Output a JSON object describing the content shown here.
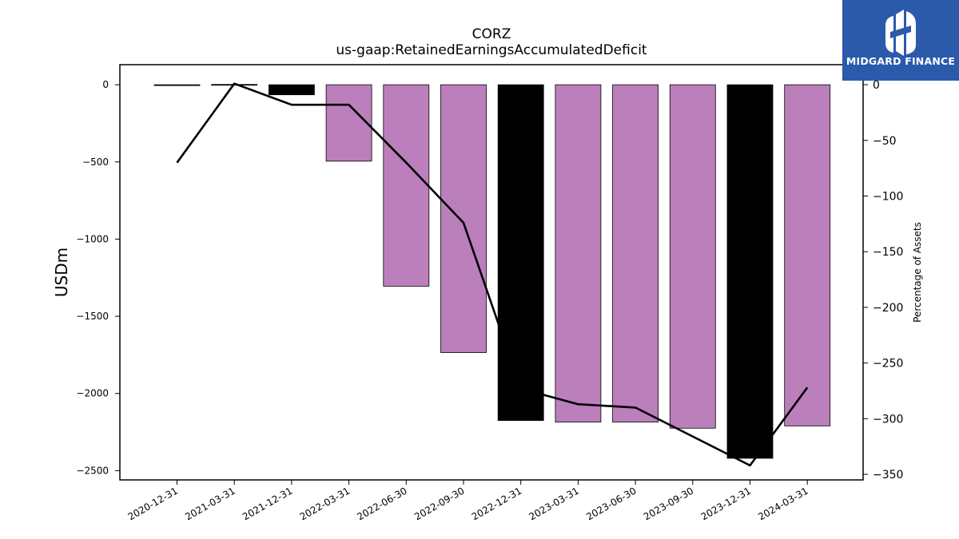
{
  "brand": {
    "name": "MIDGARD FINANCE",
    "bg_color": "#2b5aab"
  },
  "chart_data": {
    "type": "bar",
    "title": "CORZ",
    "subtitle": "us-gaap:RetainedEarningsAccumulatedDeficit",
    "ylabel": "USDm",
    "ylabel_right": "Percentage of Assets",
    "categories": [
      "2020-12-31",
      "2021-03-31",
      "2021-12-31",
      "2022-03-31",
      "2022-06-30",
      "2022-09-30",
      "2022-12-31",
      "2023-03-31",
      "2023-06-30",
      "2023-09-30",
      "2023-12-31",
      "2024-03-31"
    ],
    "series": [
      {
        "type": "bar",
        "axis": "left",
        "values": [
          -2,
          2,
          -65,
          -495,
          -1305,
          -1735,
          -2175,
          -2185,
          -2185,
          -2225,
          -2420,
          -2210
        ],
        "colors": [
          "#000000",
          "#000000",
          "#000000",
          "#bb7fbb",
          "#bb7fbb",
          "#bb7fbb",
          "#000000",
          "#bb7fbb",
          "#bb7fbb",
          "#bb7fbb",
          "#000000",
          "#bb7fbb"
        ]
      },
      {
        "type": "line",
        "axis": "right",
        "color": "#000000",
        "values": [
          -70,
          1,
          -18,
          -18,
          -70,
          -124,
          -273,
          -287,
          -290,
          -316,
          -342,
          -272
        ]
      }
    ],
    "ylim": [
      -2560,
      130
    ],
    "yticks": [
      0,
      -500,
      -1000,
      -1500,
      -2000,
      -2500
    ],
    "ytick_labels": [
      "0",
      "−500",
      "−1000",
      "−1500",
      "−2000",
      "−2500"
    ],
    "ylim_right": [
      -355,
      18
    ],
    "yticks_right": [
      0,
      -50,
      -100,
      -150,
      -200,
      -250,
      -300,
      -350
    ],
    "ytick_labels_right": [
      "0",
      "−50",
      "−100",
      "−150",
      "−200",
      "−250",
      "−300",
      "−350"
    ],
    "grid": false,
    "legend": "none"
  }
}
